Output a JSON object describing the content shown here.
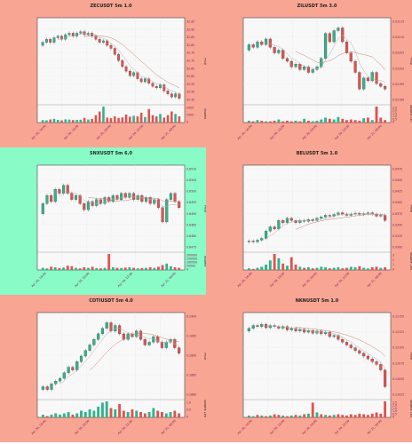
{
  "chart_data": [
    {
      "type": "candlestick",
      "title": "ZECUSDT 5m 1.0",
      "highlighted": false,
      "price_ylabel": "Price",
      "volume_ylabel": "Volume",
      "price_ticks": [
        "32.95",
        "32.90",
        "32.85",
        "32.80",
        "32.75",
        "32.70",
        "32.65",
        "32.60",
        "32.55",
        "32.50",
        "32.45"
      ],
      "volume_ticks": [
        "2000",
        "1000",
        "0"
      ],
      "x_ticks": [
        "Apr 20, 16:00",
        "Apr 20, 18:00",
        "Apr 20, 20:00",
        "Apr 20, 22:00",
        "Apr 21, 00:00"
      ],
      "ylim": [
        32.42,
        32.97
      ],
      "candles": [
        [
          32.8,
          32.82
        ],
        [
          32.82,
          32.84
        ],
        [
          32.84,
          32.82
        ],
        [
          32.82,
          32.85
        ],
        [
          32.85,
          32.86
        ],
        [
          32.86,
          32.84
        ],
        [
          32.84,
          32.87
        ],
        [
          32.87,
          32.88
        ],
        [
          32.88,
          32.86
        ],
        [
          32.86,
          32.88
        ],
        [
          32.88,
          32.89
        ],
        [
          32.89,
          32.87
        ],
        [
          32.87,
          32.88
        ],
        [
          32.88,
          32.86
        ],
        [
          32.86,
          32.84
        ],
        [
          32.84,
          32.82
        ],
        [
          32.82,
          32.83
        ],
        [
          32.83,
          32.8
        ],
        [
          32.8,
          32.78
        ],
        [
          32.78,
          32.74
        ],
        [
          32.74,
          32.7
        ],
        [
          32.7,
          32.66
        ],
        [
          32.66,
          32.63
        ],
        [
          32.63,
          32.6
        ],
        [
          32.6,
          32.62
        ],
        [
          32.62,
          32.58
        ],
        [
          32.58,
          32.56
        ],
        [
          32.56,
          32.58
        ],
        [
          32.58,
          32.55
        ],
        [
          32.55,
          32.53
        ],
        [
          32.53,
          32.52
        ],
        [
          32.52,
          32.54
        ],
        [
          32.54,
          32.5
        ],
        [
          32.5,
          32.48
        ],
        [
          32.48,
          32.46
        ],
        [
          32.46,
          32.48
        ],
        [
          32.48,
          32.45
        ]
      ],
      "volumes": [
        200,
        180,
        250,
        300,
        220,
        180,
        260,
        240,
        200,
        210,
        230,
        380,
        250,
        300,
        600,
        900,
        1300,
        400,
        350,
        500,
        380,
        420,
        650,
        480,
        550,
        500,
        800,
        450,
        1100,
        600,
        500,
        700,
        400,
        600,
        900,
        700,
        500
      ]
    },
    {
      "type": "candlestick",
      "title": "ZILUSDT 5m 3.0",
      "highlighted": false,
      "price_ylabel": "Price",
      "volume_ylabel": "Volume 1e7",
      "price_ticks": [
        "0.02215",
        "0.02210",
        "0.02205",
        "0.02200",
        "0.02195",
        "0.02190"
      ],
      "volume_ticks": [
        "2.5",
        "2.0",
        "1.5",
        "1.0",
        "0.5",
        "0"
      ],
      "x_ticks": [
        "Apr 20, 16:00",
        "Apr 20, 18:00",
        "Apr 20, 20:00",
        "Apr 20, 22:00",
        "Apr 21, 00:00"
      ],
      "ylim": [
        0.02187,
        0.02217
      ],
      "candles": [
        [
          0.02206,
          0.02208
        ],
        [
          0.02208,
          0.02207
        ],
        [
          0.02207,
          0.02209
        ],
        [
          0.02209,
          0.02208
        ],
        [
          0.02208,
          0.0221
        ],
        [
          0.0221,
          0.02207
        ],
        [
          0.02207,
          0.02205
        ],
        [
          0.02205,
          0.02206
        ],
        [
          0.02206,
          0.02203
        ],
        [
          0.02203,
          0.02202
        ],
        [
          0.02202,
          0.022
        ],
        [
          0.022,
          0.02201
        ],
        [
          0.02201,
          0.02199
        ],
        [
          0.02199,
          0.022
        ],
        [
          0.022,
          0.02198
        ],
        [
          0.02198,
          0.02199
        ],
        [
          0.02199,
          0.022
        ],
        [
          0.022,
          0.02203
        ],
        [
          0.02203,
          0.02212
        ],
        [
          0.02212,
          0.02209
        ],
        [
          0.02209,
          0.02213
        ],
        [
          0.02213,
          0.02214
        ],
        [
          0.02214,
          0.02209
        ],
        [
          0.02209,
          0.02205
        ],
        [
          0.02205,
          0.02202
        ],
        [
          0.02202,
          0.02198
        ],
        [
          0.02198,
          0.02192
        ],
        [
          0.02192,
          0.02196
        ],
        [
          0.02196,
          0.02195
        ],
        [
          0.02195,
          0.02198
        ],
        [
          0.02198,
          0.02194
        ],
        [
          0.02194,
          0.02193
        ],
        [
          0.02193,
          0.02192
        ]
      ],
      "volumes": [
        0.3,
        0.2,
        0.4,
        0.3,
        0.2,
        0.2,
        0.3,
        0.5,
        0.2,
        0.3,
        0.2,
        0.3,
        0.2,
        0.6,
        0.3,
        0.2,
        0.3,
        0.5,
        0.8,
        0.6,
        0.5,
        0.9,
        0.6,
        0.4,
        0.5,
        0.4,
        0.3,
        0.7,
        0.8,
        0.4,
        2.6,
        0.8,
        0.4
      ]
    },
    {
      "type": "candlestick",
      "title": "SNXUSDT 5m 6.0",
      "highlighted": true,
      "price_ylabel": "Price",
      "volume_ylabel": "Volume",
      "price_ticks": [
        "0.6510",
        "0.6505",
        "0.6500",
        "0.6495",
        "0.6490",
        "0.6485",
        "0.6480",
        "0.6475"
      ],
      "volume_ticks": [
        "200000",
        "150000",
        "100000",
        "50000",
        "0"
      ],
      "x_ticks": [
        "Apr 20, 18:00",
        "Apr 20, 20:00",
        "Apr 20, 22:00",
        "Apr 21, 00:00"
      ],
      "ylim": [
        0.6472,
        0.6513
      ],
      "candles": [
        [
          0.649,
          0.6495
        ],
        [
          0.6495,
          0.6499
        ],
        [
          0.6499,
          0.6496
        ],
        [
          0.6496,
          0.6502
        ],
        [
          0.6502,
          0.65
        ],
        [
          0.65,
          0.6504
        ],
        [
          0.6504,
          0.65
        ],
        [
          0.65,
          0.6497
        ],
        [
          0.6497,
          0.6499
        ],
        [
          0.6499,
          0.6495
        ],
        [
          0.6495,
          0.6492
        ],
        [
          0.6492,
          0.6496
        ],
        [
          0.6496,
          0.6494
        ],
        [
          0.6494,
          0.6497
        ],
        [
          0.6497,
          0.6495
        ],
        [
          0.6495,
          0.6498
        ],
        [
          0.6498,
          0.6496
        ],
        [
          0.6496,
          0.6499
        ],
        [
          0.6499,
          0.6497
        ],
        [
          0.6497,
          0.65
        ],
        [
          0.65,
          0.6498
        ],
        [
          0.6498,
          0.65
        ],
        [
          0.65,
          0.6497
        ],
        [
          0.6497,
          0.6499
        ],
        [
          0.6499,
          0.6496
        ],
        [
          0.6496,
          0.6498
        ],
        [
          0.6498,
          0.6495
        ],
        [
          0.6495,
          0.6497
        ],
        [
          0.6497,
          0.6493
        ],
        [
          0.6493,
          0.6486
        ],
        [
          0.6486,
          0.6497
        ],
        [
          0.6497,
          0.65
        ],
        [
          0.65,
          0.6496
        ],
        [
          0.6496,
          0.6493
        ]
      ],
      "volumes": [
        20000,
        15000,
        30000,
        25000,
        18000,
        22000,
        40000,
        35000,
        20000,
        15000,
        25000,
        20000,
        30000,
        18000,
        15000,
        20000,
        150000,
        25000,
        20000,
        18000,
        22000,
        25000,
        20000,
        15000,
        18000,
        20000,
        25000,
        20000,
        30000,
        45000,
        60000,
        35000,
        25000,
        20000
      ]
    },
    {
      "type": "candlestick",
      "title": "BELUSDT 5m 1.0",
      "highlighted": false,
      "price_ylabel": "Price",
      "volume_ylabel": "Volume 1e5",
      "price_ticks": [
        "0.9475",
        "0.9450",
        "0.9425",
        "0.9400",
        "0.9375",
        "0.9350",
        "0.9325",
        "0.9300"
      ],
      "volume_ticks": [
        "3",
        "2",
        "1",
        "0"
      ],
      "x_ticks": [
        "Apr 20, 16:00",
        "Apr 20, 18:00",
        "Apr 20, 20:00",
        "Apr 20, 22:00",
        "Apr 21, 00:00"
      ],
      "ylim": [
        0.929,
        0.9485
      ],
      "candles": [
        [
          0.931,
          0.9312
        ],
        [
          0.9312,
          0.931
        ],
        [
          0.931,
          0.9314
        ],
        [
          0.9314,
          0.9318
        ],
        [
          0.9318,
          0.9335
        ],
        [
          0.9335,
          0.9345
        ],
        [
          0.9345,
          0.934
        ],
        [
          0.934,
          0.936
        ],
        [
          0.936,
          0.9355
        ],
        [
          0.9355,
          0.9365
        ],
        [
          0.9365,
          0.936
        ],
        [
          0.936,
          0.9355
        ],
        [
          0.9355,
          0.936
        ],
        [
          0.936,
          0.9358
        ],
        [
          0.9358,
          0.9362
        ],
        [
          0.9362,
          0.936
        ],
        [
          0.936,
          0.9365
        ],
        [
          0.9365,
          0.9368
        ],
        [
          0.9368,
          0.9372
        ],
        [
          0.9372,
          0.937
        ],
        [
          0.937,
          0.9374
        ],
        [
          0.9374,
          0.9378
        ],
        [
          0.9378,
          0.9375
        ],
        [
          0.9375,
          0.9372
        ],
        [
          0.9372,
          0.9375
        ],
        [
          0.9375,
          0.9377
        ],
        [
          0.9377,
          0.9374
        ],
        [
          0.9374,
          0.9376
        ],
        [
          0.9376,
          0.9378
        ],
        [
          0.9378,
          0.9375
        ],
        [
          0.9375,
          0.937
        ],
        [
          0.937,
          0.9372
        ],
        [
          0.9372,
          0.936
        ]
      ],
      "volumes": [
        0.3,
        0.2,
        0.4,
        0.6,
        1.0,
        1.8,
        3.0,
        2.2,
        1.2,
        0.8,
        2.4,
        1.0,
        0.6,
        0.4,
        0.5,
        0.3,
        0.4,
        0.6,
        0.5,
        0.3,
        0.4,
        0.5,
        0.3,
        0.4,
        0.6,
        0.5,
        0.7,
        0.4,
        0.3,
        0.5,
        0.6,
        0.4,
        0.5
      ]
    },
    {
      "type": "candlestick",
      "title": "COTIUSDT 5m 4.0",
      "highlighted": false,
      "price_ylabel": "Price",
      "volume_ylabel": "Volume 1e6",
      "price_ticks": [
        "0.1900",
        "0.1895",
        "0.1890",
        "0.1885",
        "0.1880"
      ],
      "volume_ticks": [
        "1.0",
        "0.5",
        "0"
      ],
      "x_ticks": [
        "Apr 20, 18:00",
        "Apr 20, 20:00",
        "Apr 20, 22:00",
        "Apr 21, 00:00"
      ],
      "ylim": [
        0.1875,
        0.1905
      ],
      "candles": [
        [
          0.1878,
          0.1879
        ],
        [
          0.1879,
          0.1878
        ],
        [
          0.1878,
          0.188
        ],
        [
          0.188,
          0.1881
        ],
        [
          0.1881,
          0.1882
        ],
        [
          0.1882,
          0.1884
        ],
        [
          0.1884,
          0.1886
        ],
        [
          0.1886,
          0.1885
        ],
        [
          0.1885,
          0.1888
        ],
        [
          0.1888,
          0.189
        ],
        [
          0.189,
          0.1892
        ],
        [
          0.1892,
          0.1894
        ],
        [
          0.1894,
          0.1896
        ],
        [
          0.1896,
          0.1898
        ],
        [
          0.1898,
          0.19
        ],
        [
          0.19,
          0.1902
        ],
        [
          0.1902,
          0.1899
        ],
        [
          0.1899,
          0.1901
        ],
        [
          0.1901,
          0.1898
        ],
        [
          0.1898,
          0.1896
        ],
        [
          0.1896,
          0.1898
        ],
        [
          0.1898,
          0.1897
        ],
        [
          0.1897,
          0.1899
        ],
        [
          0.1899,
          0.1896
        ],
        [
          0.1896,
          0.1894
        ],
        [
          0.1894,
          0.1895
        ],
        [
          0.1895,
          0.1897
        ],
        [
          0.1897,
          0.1895
        ],
        [
          0.1895,
          0.1893
        ],
        [
          0.1893,
          0.1895
        ],
        [
          0.1895,
          0.1896
        ],
        [
          0.1896,
          0.1893
        ],
        [
          0.1893,
          0.1891
        ]
      ],
      "volumes": [
        0.2,
        0.1,
        0.2,
        0.3,
        0.2,
        0.3,
        0.4,
        0.2,
        0.3,
        0.5,
        0.4,
        0.6,
        0.5,
        0.8,
        1.1,
        1.2,
        0.7,
        0.6,
        1.0,
        0.5,
        0.4,
        0.6,
        0.5,
        0.4,
        0.3,
        0.4,
        0.7,
        0.5,
        0.4,
        0.3,
        0.4,
        0.5,
        0.3
      ]
    },
    {
      "type": "candlestick",
      "title": "NKNUSDT 5m 1.0",
      "highlighted": false,
      "price_ylabel": "Price",
      "volume_ylabel": "Volume 1e5",
      "price_ticks": [
        "0.12150",
        "0.12125",
        "0.12100",
        "0.12075",
        "0.12050",
        "0.12025"
      ],
      "volume_ticks": [
        "2.5",
        "2.0",
        "1.5",
        "1.0",
        "0.5",
        "0"
      ],
      "x_ticks": [
        "Apr 20, 16:00",
        "Apr 20, 18:00",
        "Apr 20, 20:00",
        "Apr 20, 22:00",
        "Apr 21, 00:00"
      ],
      "ylim": [
        0.1201,
        0.1216
      ],
      "candles": [
        [
          0.1213,
          0.12135
        ],
        [
          0.12135,
          0.1214
        ],
        [
          0.1214,
          0.12138
        ],
        [
          0.12138,
          0.12142
        ],
        [
          0.12142,
          0.12136
        ],
        [
          0.12136,
          0.1214
        ],
        [
          0.1214,
          0.12138
        ],
        [
          0.12138,
          0.12135
        ],
        [
          0.12135,
          0.12138
        ],
        [
          0.12138,
          0.12132
        ],
        [
          0.12132,
          0.12135
        ],
        [
          0.12135,
          0.1213
        ],
        [
          0.1213,
          0.12133
        ],
        [
          0.12133,
          0.12128
        ],
        [
          0.12128,
          0.12131
        ],
        [
          0.12131,
          0.12126
        ],
        [
          0.12126,
          0.1213
        ],
        [
          0.1213,
          0.12125
        ],
        [
          0.12125,
          0.12128
        ],
        [
          0.12128,
          0.1212
        ],
        [
          0.1212,
          0.12122
        ],
        [
          0.12122,
          0.12115
        ],
        [
          0.12115,
          0.1211
        ],
        [
          0.1211,
          0.12105
        ],
        [
          0.12105,
          0.121
        ],
        [
          0.121,
          0.12095
        ],
        [
          0.12095,
          0.1209
        ],
        [
          0.1209,
          0.12085
        ],
        [
          0.12085,
          0.1208
        ],
        [
          0.1208,
          0.12075
        ],
        [
          0.12075,
          0.1207
        ],
        [
          0.1207,
          0.1206
        ],
        [
          0.1206,
          0.1203
        ]
      ],
      "volumes": [
        0.3,
        0.2,
        0.4,
        0.3,
        0.2,
        0.3,
        0.5,
        0.4,
        0.3,
        0.2,
        0.3,
        0.4,
        0.3,
        0.5,
        0.6,
        2.4,
        0.8,
        0.5,
        0.4,
        0.3,
        0.4,
        0.5,
        0.4,
        0.3,
        0.5,
        0.4,
        0.6,
        0.5,
        0.4,
        0.6,
        0.8,
        0.6,
        2.6
      ]
    }
  ],
  "colors": {
    "page_bg": "#f9a594",
    "highlight_bg": "#88fbc6",
    "plot_bg": "#f8f8f8",
    "up": "#2fb38b",
    "down": "#e2514f",
    "ma_light": "#b0b0b0",
    "ma_dark": "#c08070",
    "tick_label": "#7a1a4f"
  }
}
